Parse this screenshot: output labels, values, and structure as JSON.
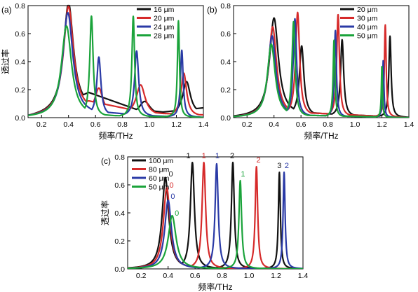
{
  "figure": {
    "panels": [
      "(a)",
      "(b)",
      "(c)"
    ]
  },
  "chart_data": [
    {
      "panel": "(a)",
      "type": "line",
      "xlabel": "频率/THz",
      "ylabel": "透过率",
      "xlim": [
        0.1,
        1.4
      ],
      "ylim": [
        0,
        0.8
      ],
      "xticks": [
        "0.2",
        "0.4",
        "0.6",
        "0.8",
        "1.0",
        "1.2",
        "1.4"
      ],
      "yticks": [
        "0.0",
        "0.2",
        "0.4",
        "0.6",
        "0.8"
      ],
      "legend_position": "top-right",
      "series": [
        {
          "name": "16 μm",
          "color": "#111111",
          "peaks": [
            {
              "x": 0.4,
              "y": 0.78,
              "w": 0.045
            },
            {
              "x": 0.655,
              "y": 0.085,
              "w": 0.045
            },
            {
              "x": 0.965,
              "y": 0.1,
              "w": 0.05
            },
            {
              "x": 1.275,
              "y": 0.24,
              "w": 0.035
            }
          ],
          "background": [
            [
              0.1,
              0.0
            ],
            [
              0.55,
              0.18
            ],
            [
              0.9,
              0.06
            ],
            [
              1.1,
              0.04
            ],
            [
              1.4,
              0.07
            ]
          ]
        },
        {
          "name": "20 μm",
          "color": "#d62a2a",
          "peaks": [
            {
              "x": 0.4,
              "y": 0.77,
              "w": 0.045
            },
            {
              "x": 0.625,
              "y": 0.18,
              "w": 0.035
            },
            {
              "x": 0.935,
              "y": 0.22,
              "w": 0.04
            },
            {
              "x": 1.255,
              "y": 0.31,
              "w": 0.025
            }
          ],
          "background": [
            [
              0.1,
              0.0
            ],
            [
              0.55,
              0.12
            ],
            [
              0.9,
              0.05
            ],
            [
              1.1,
              0.03
            ],
            [
              1.4,
              0.02
            ]
          ]
        },
        {
          "name": "24 μm",
          "color": "#2a3aa6",
          "peaks": [
            {
              "x": 0.395,
              "y": 0.74,
              "w": 0.045
            },
            {
              "x": 0.625,
              "y": 0.42,
              "w": 0.018
            },
            {
              "x": 0.905,
              "y": 0.47,
              "w": 0.018
            },
            {
              "x": 1.24,
              "y": 0.48,
              "w": 0.012
            }
          ],
          "background": [
            [
              0.1,
              0.0
            ],
            [
              0.55,
              0.05
            ],
            [
              0.9,
              0.02
            ],
            [
              1.1,
              0.01
            ],
            [
              1.4,
              0.0
            ]
          ]
        },
        {
          "name": "28 μm",
          "color": "#1aa33a",
          "peaks": [
            {
              "x": 0.385,
              "y": 0.65,
              "w": 0.045
            },
            {
              "x": 0.57,
              "y": 0.72,
              "w": 0.015
            },
            {
              "x": 0.88,
              "y": 0.72,
              "w": 0.012
            },
            {
              "x": 1.215,
              "y": 0.69,
              "w": 0.009
            }
          ],
          "background": [
            [
              0.1,
              0.0
            ],
            [
              0.5,
              0.02
            ],
            [
              1.4,
              0.0
            ]
          ]
        }
      ]
    },
    {
      "panel": "(b)",
      "type": "line",
      "xlabel": "频率/THz",
      "ylabel": "",
      "xlim": [
        0.1,
        1.4
      ],
      "ylim": [
        0,
        0.8
      ],
      "xticks": [
        "0.2",
        "0.4",
        "0.6",
        "0.8",
        "1.0",
        "1.2",
        "1.4"
      ],
      "yticks": [
        "0.0",
        "0.2",
        "0.4",
        "0.6",
        "0.8"
      ],
      "legend_position": "top-right",
      "series": [
        {
          "name": "20 μm",
          "color": "#111111",
          "peaks": [
            {
              "x": 0.4,
              "y": 0.7,
              "w": 0.04
            },
            {
              "x": 0.605,
              "y": 0.5,
              "w": 0.02
            },
            {
              "x": 0.905,
              "y": 0.55,
              "w": 0.014
            },
            {
              "x": 1.26,
              "y": 0.58,
              "w": 0.01
            }
          ],
          "background": [
            [
              0.1,
              0.0
            ],
            [
              0.5,
              0.05
            ],
            [
              0.75,
              0.03
            ],
            [
              1.4,
              0.0
            ]
          ]
        },
        {
          "name": "30 μm",
          "color": "#d62a2a",
          "peaks": [
            {
              "x": 0.39,
              "y": 0.64,
              "w": 0.035
            },
            {
              "x": 0.575,
              "y": 0.74,
              "w": 0.018
            },
            {
              "x": 0.875,
              "y": 0.73,
              "w": 0.012
            },
            {
              "x": 1.225,
              "y": 0.66,
              "w": 0.008
            }
          ],
          "background": [
            [
              0.1,
              0.0
            ],
            [
              0.5,
              0.04
            ],
            [
              0.75,
              0.03
            ],
            [
              1.4,
              0.0
            ]
          ]
        },
        {
          "name": "40 μm",
          "color": "#2a3aa6",
          "peaks": [
            {
              "x": 0.385,
              "y": 0.58,
              "w": 0.035
            },
            {
              "x": 0.555,
              "y": 0.7,
              "w": 0.015
            },
            {
              "x": 0.855,
              "y": 0.62,
              "w": 0.009
            },
            {
              "x": 1.21,
              "y": 0.41,
              "w": 0.006
            }
          ],
          "background": [
            [
              0.1,
              0.0
            ],
            [
              0.5,
              0.02
            ],
            [
              1.4,
              0.0
            ]
          ]
        },
        {
          "name": "50 μm",
          "color": "#1aa33a",
          "peaks": [
            {
              "x": 0.38,
              "y": 0.52,
              "w": 0.035
            },
            {
              "x": 0.545,
              "y": 0.68,
              "w": 0.014
            },
            {
              "x": 0.845,
              "y": 0.55,
              "w": 0.008
            },
            {
              "x": 1.2,
              "y": 0.37,
              "w": 0.005
            }
          ],
          "background": [
            [
              0.1,
              0.0
            ],
            [
              0.5,
              0.02
            ],
            [
              1.4,
              0.0
            ]
          ]
        }
      ]
    },
    {
      "panel": "(c)",
      "type": "line",
      "xlabel": "频率/THz",
      "ylabel": "透过率",
      "xlim": [
        0.1,
        1.4
      ],
      "ylim": [
        0,
        0.8
      ],
      "xticks": [
        "0.2",
        "0.4",
        "0.6",
        "0.8",
        "1.0",
        "1.2",
        "1.4"
      ],
      "yticks": [
        "0.0",
        "0.2",
        "0.4",
        "0.6",
        "0.8"
      ],
      "legend_position": "top-left",
      "series": [
        {
          "name": "100 μm",
          "color": "#111111",
          "peaks": [
            {
              "x": 0.38,
              "y": 0.65,
              "w": 0.03
            },
            {
              "x": 0.58,
              "y": 0.76,
              "w": 0.018
            },
            {
              "x": 0.88,
              "y": 0.76,
              "w": 0.013
            },
            {
              "x": 1.225,
              "y": 0.69,
              "w": 0.009
            }
          ],
          "background": [
            [
              0.1,
              0.0
            ],
            [
              1.4,
              0.0
            ]
          ]
        },
        {
          "name": "80 μm",
          "color": "#d62a2a",
          "peaks": [
            {
              "x": 0.39,
              "y": 0.58,
              "w": 0.03
            },
            {
              "x": 0.665,
              "y": 0.76,
              "w": 0.016
            },
            {
              "x": 1.055,
              "y": 0.73,
              "w": 0.011
            }
          ],
          "background": [
            [
              0.1,
              0.0
            ],
            [
              1.4,
              0.0
            ]
          ]
        },
        {
          "name": "60 μm",
          "color": "#2a3aa6",
          "peaks": [
            {
              "x": 0.4,
              "y": 0.49,
              "w": 0.03
            },
            {
              "x": 0.76,
              "y": 0.75,
              "w": 0.014
            },
            {
              "x": 1.26,
              "y": 0.69,
              "w": 0.009
            }
          ],
          "background": [
            [
              0.1,
              0.0
            ],
            [
              1.4,
              0.0
            ]
          ]
        },
        {
          "name": "50 μm",
          "color": "#1aa33a",
          "peaks": [
            {
              "x": 0.43,
              "y": 0.38,
              "w": 0.035
            },
            {
              "x": 0.935,
              "y": 0.63,
              "w": 0.012
            }
          ],
          "background": [
            [
              0.1,
              0.0
            ],
            [
              1.4,
              0.0
            ]
          ]
        }
      ],
      "annotations": [
        {
          "text": "0",
          "color": "#111111",
          "x": 0.42,
          "y": 0.66
        },
        {
          "text": "0",
          "color": "#d62a2a",
          "x": 0.425,
          "y": 0.58
        },
        {
          "text": "0",
          "color": "#2a3aa6",
          "x": 0.435,
          "y": 0.5
        },
        {
          "text": "0",
          "color": "#1aa33a",
          "x": 0.465,
          "y": 0.38
        },
        {
          "text": "1",
          "color": "#111111",
          "x": 0.55,
          "y": 0.79
        },
        {
          "text": "1",
          "color": "#d62a2a",
          "x": 0.665,
          "y": 0.79
        },
        {
          "text": "1",
          "color": "#2a3aa6",
          "x": 0.765,
          "y": 0.79
        },
        {
          "text": "1",
          "color": "#1aa33a",
          "x": 0.955,
          "y": 0.66
        },
        {
          "text": "2",
          "color": "#111111",
          "x": 0.875,
          "y": 0.79
        },
        {
          "text": "2",
          "color": "#d62a2a",
          "x": 1.07,
          "y": 0.76
        },
        {
          "text": "3",
          "color": "#111111",
          "x": 1.225,
          "y": 0.72
        },
        {
          "text": "2",
          "color": "#2a3aa6",
          "x": 1.28,
          "y": 0.72
        }
      ]
    }
  ]
}
